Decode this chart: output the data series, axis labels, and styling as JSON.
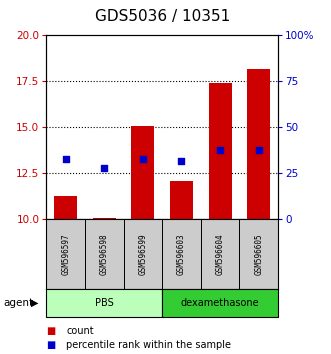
{
  "title": "GDS5036 / 10351",
  "samples": [
    "GSM596597",
    "GSM596598",
    "GSM596599",
    "GSM596603",
    "GSM596604",
    "GSM596605"
  ],
  "count_values": [
    11.3,
    10.1,
    15.1,
    12.1,
    17.4,
    18.2
  ],
  "percentile_values": [
    33,
    28,
    33,
    32,
    38,
    38
  ],
  "y_min": 10,
  "y_max": 20,
  "y_ticks": [
    10,
    12.5,
    15,
    17.5,
    20
  ],
  "right_y_ticks": [
    0,
    25,
    50,
    75,
    100
  ],
  "right_y_labels": [
    "0",
    "25",
    "50",
    "75",
    "100%"
  ],
  "groups": [
    {
      "label": "PBS",
      "start": 0,
      "end": 3,
      "color": "#bbffbb"
    },
    {
      "label": "dexamethasone",
      "start": 3,
      "end": 6,
      "color": "#33cc33"
    }
  ],
  "group_label": "agent",
  "bar_color": "#cc0000",
  "dot_color": "#0000cc",
  "bar_bottom": 10,
  "title_fontsize": 11,
  "tick_label_color_left": "#cc0000",
  "tick_label_color_right": "#0000cc",
  "legend_count_label": "count",
  "legend_percentile_label": "percentile rank within the sample",
  "dotted_line_color": "#000000",
  "sample_bg_color": "#cccccc",
  "bar_width": 0.6
}
